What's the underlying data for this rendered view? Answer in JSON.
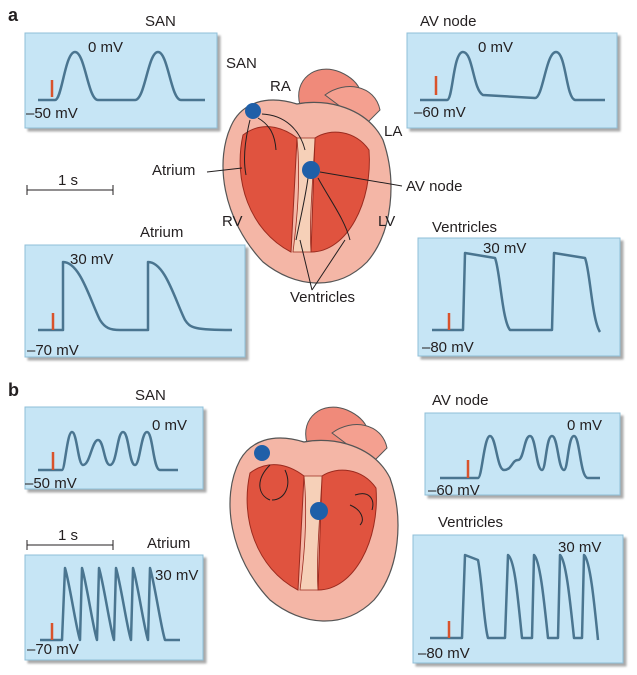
{
  "panels": [
    {
      "label": "a",
      "traces": [
        {
          "title": "SAN",
          "top": "0 mV",
          "bottom": "–50 mV"
        },
        {
          "title": "AV node",
          "top": "0 mV",
          "bottom": "–60 mV"
        },
        {
          "title": "Atrium",
          "top": "30 mV",
          "bottom": "–70 mV"
        },
        {
          "title": "Ventricles",
          "top": "30 mV",
          "bottom": "–80 mV"
        }
      ],
      "scale": "1 s",
      "heart_labels": [
        "SAN",
        "RA",
        "LA",
        "Atrium",
        "AV node",
        "RV",
        "LV",
        "Ventricles"
      ]
    },
    {
      "label": "b",
      "traces": [
        {
          "title": "SAN",
          "top": "0 mV",
          "bottom": "–50 mV"
        },
        {
          "title": "AV node",
          "top": "0 mV",
          "bottom": "–60 mV"
        },
        {
          "title": "Atrium",
          "top": "30 mV",
          "bottom": "–70 mV"
        },
        {
          "title": "Ventricles",
          "top": "30 mV",
          "bottom": "–80 mV"
        }
      ],
      "scale": "1 s"
    }
  ]
}
